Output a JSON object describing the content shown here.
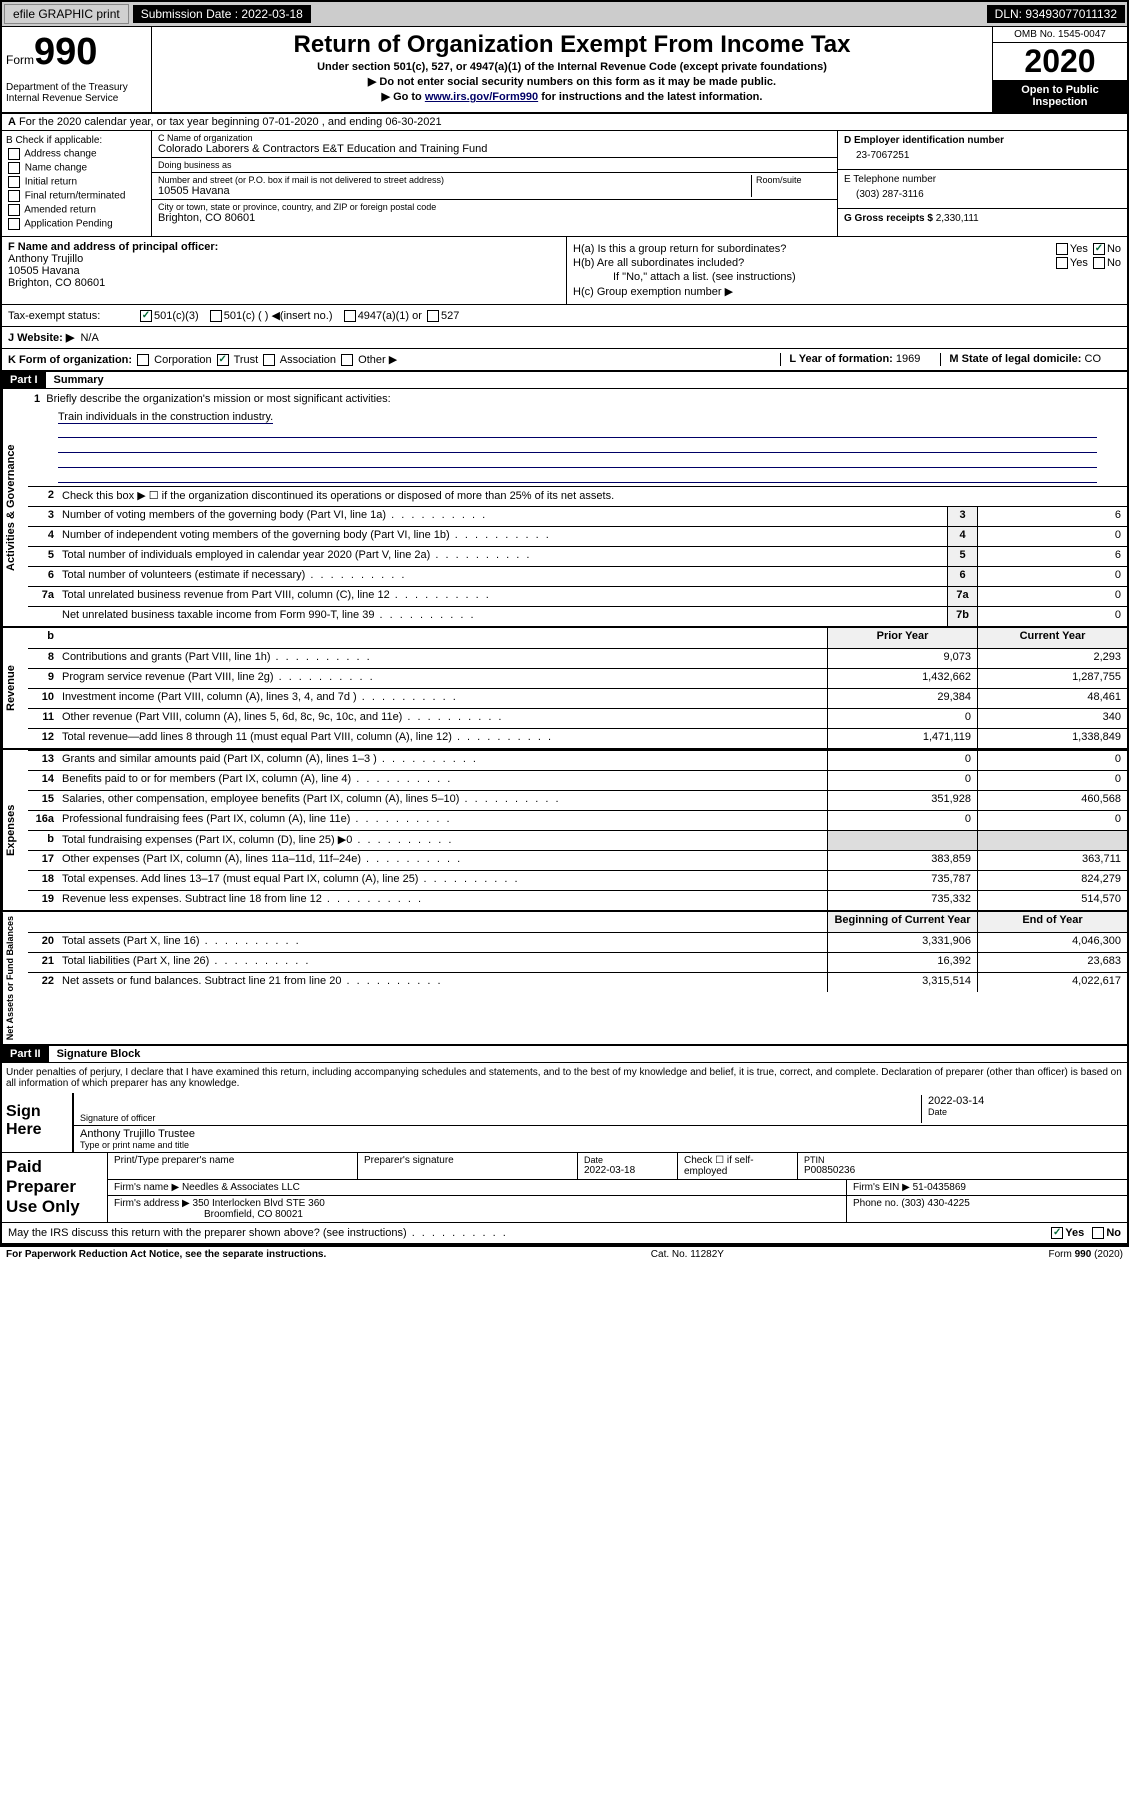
{
  "top": {
    "efile": "efile GRAPHIC print",
    "sub_label": "Submission Date : 2022-03-18",
    "dln": "DLN: 93493077011132"
  },
  "header": {
    "form_label": "Form",
    "form_number": "990",
    "dept": "Department of the Treasury Internal Revenue Service",
    "title": "Return of Organization Exempt From Income Tax",
    "sub1": "Under section 501(c), 527, or 4947(a)(1) of the Internal Revenue Code (except private foundations)",
    "sub2": "▶ Do not enter social security numbers on this form as it may be made public.",
    "sub3_pre": "▶ Go to ",
    "sub3_link": "www.irs.gov/Form990",
    "sub3_post": " for instructions and the latest information.",
    "omb": "OMB No. 1545-0047",
    "year": "2020",
    "inspection": "Open to Public Inspection"
  },
  "lineA": "For the 2020 calendar year, or tax year beginning 07-01-2020    , and ending 06-30-2021",
  "colB": {
    "label": "B Check if applicable:",
    "opts": [
      "Address change",
      "Name change",
      "Initial return",
      "Final return/terminated",
      "Amended return",
      "Application Pending"
    ]
  },
  "colC": {
    "name_label": "C Name of organization",
    "name": "Colorado Laborers & Contractors E&T Education and Training Fund",
    "dba_label": "Doing business as",
    "dba": "",
    "addr_label": "Number and street (or P.O. box if mail is not delivered to street address)",
    "room_label": "Room/suite",
    "addr": "10505 Havana",
    "city_label": "City or town, state or province, country, and ZIP or foreign postal code",
    "city": "Brighton, CO 80601"
  },
  "colD": {
    "ein_label": "D Employer identification number",
    "ein": "23-7067251",
    "tel_label": "E Telephone number",
    "tel": "(303) 287-3116",
    "gross_label": "G Gross receipts $",
    "gross": "2,330,111"
  },
  "colF": {
    "label": "F  Name and address of principal officer:",
    "name": "Anthony Trujillo",
    "addr1": "10505 Havana",
    "addr2": "Brighton, CO  80601"
  },
  "colH": {
    "ha": "H(a)  Is this a group return for subordinates?",
    "hb": "H(b)  Are all subordinates included?",
    "hb_note": "If \"No,\" attach a list. (see instructions)",
    "hc": "H(c)  Group exemption number ▶"
  },
  "tax": {
    "label": "Tax-exempt status:",
    "opt1": "501(c)(3)",
    "opt2": "501(c) (  ) ◀(insert no.)",
    "opt3": "4947(a)(1) or",
    "opt4": "527"
  },
  "website": {
    "label": "J   Website: ▶",
    "val": "N/A"
  },
  "rowK": {
    "label": "K Form of organization:",
    "opts": [
      "Corporation",
      "Trust",
      "Association",
      "Other ▶"
    ],
    "year_label": "L Year of formation:",
    "year": "1969",
    "state_label": "M State of legal domicile:",
    "state": "CO"
  },
  "part1": {
    "header": "Part I",
    "title": "Summary",
    "q1": "Briefly describe the organization's mission or most significant activities:",
    "mission": "Train individuals in the construction industry.",
    "q2": "Check this box ▶ ☐  if the organization discontinued its operations or disposed of more than 25% of its net assets.",
    "rows_governance": [
      {
        "n": "3",
        "desc": "Number of voting members of the governing body (Part VI, line 1a)",
        "cn": "3",
        "val": "6"
      },
      {
        "n": "4",
        "desc": "Number of independent voting members of the governing body (Part VI, line 1b)",
        "cn": "4",
        "val": "0"
      },
      {
        "n": "5",
        "desc": "Total number of individuals employed in calendar year 2020 (Part V, line 2a)",
        "cn": "5",
        "val": "6"
      },
      {
        "n": "6",
        "desc": "Total number of volunteers (estimate if necessary)",
        "cn": "6",
        "val": "0"
      },
      {
        "n": "7a",
        "desc": "Total unrelated business revenue from Part VIII, column (C), line 12",
        "cn": "7a",
        "val": "0"
      },
      {
        "n": "",
        "desc": "Net unrelated business taxable income from Form 990-T, line 39",
        "cn": "7b",
        "val": "0"
      }
    ],
    "col_prior": "Prior Year",
    "col_curr": "Current Year",
    "rows_revenue": [
      {
        "n": "8",
        "desc": "Contributions and grants (Part VIII, line 1h)",
        "p": "9,073",
        "c": "2,293"
      },
      {
        "n": "9",
        "desc": "Program service revenue (Part VIII, line 2g)",
        "p": "1,432,662",
        "c": "1,287,755"
      },
      {
        "n": "10",
        "desc": "Investment income (Part VIII, column (A), lines 3, 4, and 7d )",
        "p": "29,384",
        "c": "48,461"
      },
      {
        "n": "11",
        "desc": "Other revenue (Part VIII, column (A), lines 5, 6d, 8c, 9c, 10c, and 11e)",
        "p": "0",
        "c": "340"
      },
      {
        "n": "12",
        "desc": "Total revenue—add lines 8 through 11 (must equal Part VIII, column (A), line 12)",
        "p": "1,471,119",
        "c": "1,338,849"
      }
    ],
    "rows_expenses": [
      {
        "n": "13",
        "desc": "Grants and similar amounts paid (Part IX, column (A), lines 1–3 )",
        "p": "0",
        "c": "0"
      },
      {
        "n": "14",
        "desc": "Benefits paid to or for members (Part IX, column (A), line 4)",
        "p": "0",
        "c": "0"
      },
      {
        "n": "15",
        "desc": "Salaries, other compensation, employee benefits (Part IX, column (A), lines 5–10)",
        "p": "351,928",
        "c": "460,568"
      },
      {
        "n": "16a",
        "desc": "Professional fundraising fees (Part IX, column (A), line 11e)",
        "p": "0",
        "c": "0"
      },
      {
        "n": "b",
        "desc": "Total fundraising expenses (Part IX, column (D), line 25) ▶0",
        "p": "",
        "c": ""
      },
      {
        "n": "17",
        "desc": "Other expenses (Part IX, column (A), lines 11a–11d, 11f–24e)",
        "p": "383,859",
        "c": "363,711"
      },
      {
        "n": "18",
        "desc": "Total expenses. Add lines 13–17 (must equal Part IX, column (A), line 25)",
        "p": "735,787",
        "c": "824,279"
      },
      {
        "n": "19",
        "desc": "Revenue less expenses. Subtract line 18 from line 12",
        "p": "735,332",
        "c": "514,570"
      }
    ],
    "col_begin": "Beginning of Current Year",
    "col_end": "End of Year",
    "rows_assets": [
      {
        "n": "20",
        "desc": "Total assets (Part X, line 16)",
        "p": "3,331,906",
        "c": "4,046,300"
      },
      {
        "n": "21",
        "desc": "Total liabilities (Part X, line 26)",
        "p": "16,392",
        "c": "23,683"
      },
      {
        "n": "22",
        "desc": "Net assets or fund balances. Subtract line 21 from line 20",
        "p": "3,315,514",
        "c": "4,022,617"
      }
    ]
  },
  "part2": {
    "header": "Part II",
    "title": "Signature Block",
    "perjury": "Under penalties of perjury, I declare that I have examined this return, including accompanying schedules and statements, and to the best of my knowledge and belief, it is true, correct, and complete. Declaration of preparer (other than officer) is based on all information of which preparer has any knowledge.",
    "sign_here": "Sign Here",
    "sig_officer": "Signature of officer",
    "sig_date": "2022-03-14",
    "date_label": "Date",
    "officer_name": "Anthony Trujillo Trustee",
    "officer_title": "Type or print name and title",
    "paid_label": "Paid Preparer Use Only",
    "prep_name_label": "Print/Type preparer's name",
    "prep_sig_label": "Preparer's signature",
    "prep_date_label": "Date",
    "prep_date": "2022-03-18",
    "self_emp": "Check ☐ if self-employed",
    "ptin_label": "PTIN",
    "ptin": "P00850236",
    "firm_name_label": "Firm's name    ▶",
    "firm_name": "Needles & Associates LLC",
    "firm_ein_label": "Firm's EIN ▶",
    "firm_ein": "51-0435869",
    "firm_addr_label": "Firm's address ▶",
    "firm_addr1": "350 Interlocken Blvd STE 360",
    "firm_addr2": "Broomfield, CO  80021",
    "firm_phone_label": "Phone no.",
    "firm_phone": "(303) 430-4225",
    "discuss": "May the IRS discuss this return with the preparer shown above? (see instructions)"
  },
  "footer": {
    "left": "For Paperwork Reduction Act Notice, see the separate instructions.",
    "mid": "Cat. No. 11282Y",
    "right": "Form 990 (2020)"
  },
  "labels": {
    "yes": "Yes",
    "no": "No",
    "vert_gov": "Activities & Governance",
    "vert_rev": "Revenue",
    "vert_exp": "Expenses",
    "vert_net": "Net Assets or Fund Balances"
  }
}
